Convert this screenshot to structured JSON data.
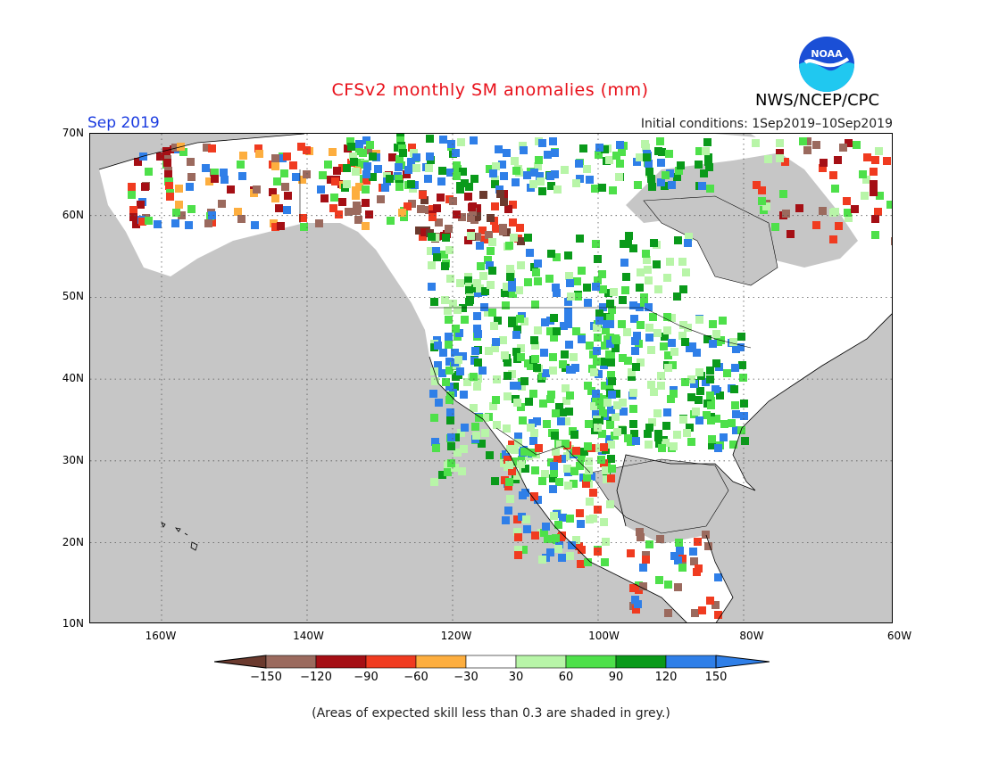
{
  "header": {
    "title": "CFSv2 monthly SM anomalies (mm)",
    "org": "NWS/NCEP/CPC",
    "logo_text": "NOAA",
    "month": "Sep 2019",
    "initial_conditions": "Initial conditions: 1Sep2019–10Sep2019"
  },
  "axes": {
    "lat_labels": [
      "70N",
      "60N",
      "50N",
      "40N",
      "30N",
      "20N",
      "10N"
    ],
    "lon_labels": [
      "160W",
      "140W",
      "120W",
      "100W",
      "80W",
      "60W"
    ]
  },
  "legend": {
    "tick_labels": [
      "−150",
      "−120",
      "−90",
      "−60",
      "−30",
      "30",
      "60",
      "90",
      "120",
      "150"
    ],
    "colors": [
      "#6b3a2e",
      "#9b6a5e",
      "#a50f15",
      "#f03b20",
      "#fdae3f",
      "#ffffff",
      "#b8f5a8",
      "#4ee04a",
      "#0a9a1a",
      "#2f7fe8",
      "#2f7fe8"
    ]
  },
  "colors": {
    "grey_mask": "#c6c6c6",
    "title_red": "#e8101a",
    "month_blue": "#1a3be0"
  },
  "footnote": "(Areas of expected skill less than 0.3 are shaded in grey.)"
}
